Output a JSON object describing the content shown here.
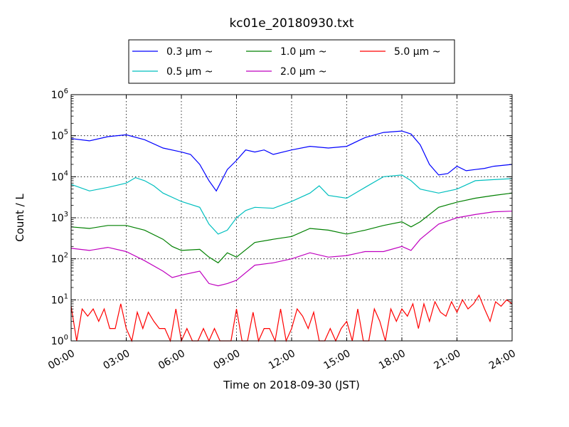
{
  "chart_data": {
    "type": "line",
    "title": "kc01e_20180930.txt",
    "xlabel": "Time on 2018-09-30 (JST)",
    "ylabel": "Count / L",
    "x_ticks": [
      "00:00",
      "03:00",
      "06:00",
      "09:00",
      "12:00",
      "15:00",
      "18:00",
      "21:00",
      "24:00"
    ],
    "xlim_hours": [
      0,
      24
    ],
    "y_scale": "log",
    "ylim": [
      1,
      1000000
    ],
    "y_ticks": [
      {
        "base": "10",
        "exp": "0"
      },
      {
        "base": "10",
        "exp": "1"
      },
      {
        "base": "10",
        "exp": "2"
      },
      {
        "base": "10",
        "exp": "3"
      },
      {
        "base": "10",
        "exp": "4"
      },
      {
        "base": "10",
        "exp": "5"
      },
      {
        "base": "10",
        "exp": "6"
      }
    ],
    "grid": true,
    "legend_position": "top-center, above plot",
    "series": [
      {
        "name": "0.3 μm ~",
        "color": "#0000ff",
        "hours": [
          0,
          1,
          2,
          3,
          4,
          5,
          6,
          6.5,
          7,
          7.5,
          7.9,
          8.5,
          9,
          9.5,
          10,
          10.5,
          11,
          12,
          13,
          14,
          15,
          16,
          17,
          18,
          18.5,
          19,
          19.5,
          20,
          20.5,
          21,
          21.5,
          22,
          22.5,
          23,
          24
        ],
        "values": [
          85000,
          75000,
          95000,
          105000,
          80000,
          50000,
          40000,
          35000,
          20000,
          8000,
          4500,
          15000,
          25000,
          45000,
          40000,
          45000,
          35000,
          45000,
          55000,
          50000,
          55000,
          90000,
          120000,
          130000,
          110000,
          60000,
          20000,
          11000,
          12000,
          18000,
          14000,
          15000,
          16000,
          18000,
          20000
        ]
      },
      {
        "name": "0.5 μm ~",
        "color": "#00bfbf",
        "hours": [
          0,
          1,
          2,
          3,
          3.5,
          4,
          4.5,
          5,
          6,
          7,
          7.5,
          8,
          8.5,
          9,
          9.5,
          10,
          11,
          12,
          13,
          13.5,
          14,
          15,
          16,
          17,
          18,
          18.5,
          19,
          20,
          21,
          22,
          23,
          24
        ],
        "values": [
          6500,
          4500,
          5500,
          7000,
          9500,
          8000,
          6000,
          4000,
          2500,
          1800,
          700,
          400,
          500,
          1000,
          1500,
          1800,
          1700,
          2500,
          4000,
          6000,
          3500,
          3000,
          5500,
          10000,
          11000,
          8000,
          5000,
          4000,
          5000,
          8000,
          8500,
          9000
        ]
      },
      {
        "name": "1.0 μm ~",
        "color": "#008000",
        "hours": [
          0,
          1,
          2,
          3,
          4,
          5,
          5.5,
          6,
          7,
          7.5,
          8,
          8.5,
          9,
          10,
          11,
          12,
          13,
          14,
          15,
          16,
          17,
          18,
          18.5,
          19,
          20,
          21,
          22,
          23,
          24
        ],
        "values": [
          600,
          550,
          650,
          650,
          500,
          300,
          200,
          160,
          170,
          110,
          80,
          140,
          110,
          250,
          300,
          350,
          550,
          500,
          400,
          500,
          650,
          800,
          600,
          800,
          1800,
          2400,
          3000,
          3500,
          4000
        ]
      },
      {
        "name": "2.0 μm ~",
        "color": "#bf00bf",
        "hours": [
          0,
          1,
          2,
          3,
          4,
          5,
          5.5,
          6,
          7,
          7.5,
          8,
          8.5,
          9,
          10,
          11,
          12,
          13,
          14,
          15,
          16,
          17,
          18,
          18.5,
          19,
          20,
          21,
          22,
          23,
          24
        ],
        "values": [
          180,
          160,
          190,
          150,
          90,
          50,
          35,
          40,
          50,
          25,
          22,
          25,
          30,
          70,
          80,
          100,
          140,
          110,
          120,
          150,
          150,
          200,
          160,
          300,
          700,
          1000,
          1200,
          1400,
          1450
        ]
      },
      {
        "name": "5.0 μm ~",
        "color": "#ff0000",
        "hours": [
          0,
          0.3,
          0.6,
          0.9,
          1.2,
          1.5,
          1.8,
          2.1,
          2.4,
          2.7,
          3.0,
          3.3,
          3.6,
          3.9,
          4.2,
          4.5,
          4.8,
          5.1,
          5.4,
          5.7,
          6.0,
          6.3,
          6.6,
          6.9,
          7.2,
          7.5,
          7.8,
          8.1,
          8.4,
          8.7,
          9.0,
          9.3,
          9.6,
          9.9,
          10.2,
          10.5,
          10.8,
          11.1,
          11.4,
          11.7,
          12.0,
          12.3,
          12.6,
          12.9,
          13.2,
          13.5,
          13.8,
          14.1,
          14.4,
          14.7,
          15.0,
          15.3,
          15.6,
          15.9,
          16.2,
          16.5,
          16.8,
          17.1,
          17.4,
          17.7,
          18.0,
          18.3,
          18.6,
          18.9,
          19.2,
          19.5,
          19.8,
          20.1,
          20.4,
          20.7,
          21.0,
          21.3,
          21.6,
          21.9,
          22.2,
          22.5,
          22.8,
          23.1,
          23.4,
          23.7,
          24.0
        ],
        "values": [
          7,
          1,
          6,
          4,
          6,
          3,
          6,
          2,
          2,
          8,
          2,
          1,
          5,
          2,
          5,
          3,
          2,
          2,
          1,
          6,
          1,
          2,
          1,
          1,
          2,
          1,
          2,
          1,
          1,
          1,
          6,
          1,
          1,
          5,
          1,
          2,
          2,
          1,
          6,
          1,
          2,
          6,
          4,
          2,
          5,
          1,
          1,
          2,
          1,
          2,
          3,
          1,
          6,
          1,
          1,
          6,
          3,
          1,
          6,
          3,
          6,
          4,
          8,
          2,
          8,
          3,
          9,
          5,
          4,
          9,
          5,
          10,
          6,
          8,
          13,
          6,
          3,
          9,
          7,
          10,
          8
        ]
      }
    ]
  }
}
